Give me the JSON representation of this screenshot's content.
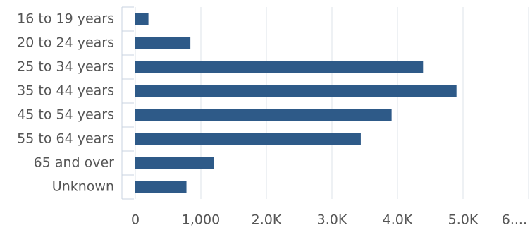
{
  "chart_data": {
    "type": "bar",
    "orientation": "horizontal",
    "categories": [
      "16 to 19 years",
      "20 to 24 years",
      "25 to 34 years",
      "35 to 44 years",
      "45 to 54 years",
      "55 to 64 years",
      "65 and over",
      "Unknown"
    ],
    "values": [
      200,
      840,
      4390,
      4900,
      3910,
      3440,
      1200,
      780
    ],
    "color": "#2e5a88",
    "xlim": [
      0,
      6000
    ],
    "xticks": [
      0,
      {
        "value": 1000,
        "label": "1,000"
      },
      {
        "value": 2000,
        "label": "2.0K"
      },
      {
        "value": 3000,
        "label": "3.0K"
      },
      {
        "value": 4000,
        "label": "4.0K"
      },
      {
        "value": 5000,
        "label": "5.0K"
      },
      {
        "value": 6000,
        "label": "6...."
      }
    ],
    "grid": true
  }
}
